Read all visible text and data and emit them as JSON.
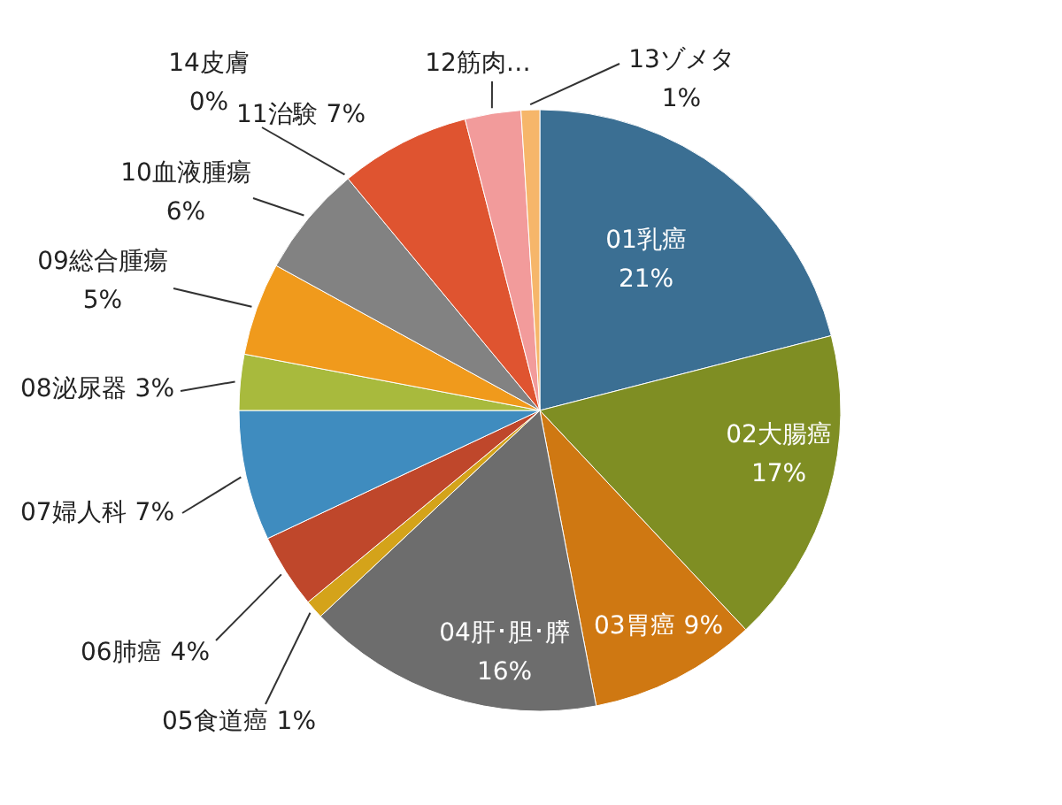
{
  "chart_data": {
    "type": "pie",
    "categories": [
      "01乳癌",
      "02大腸癌",
      "03胃癌",
      "04肝･胆･膵",
      "05食道癌",
      "06肺癌",
      "07婦人科",
      "08泌尿器",
      "09総合腫瘍",
      "10血液腫瘍",
      "14皮膚",
      "11治験",
      "12筋肉…",
      "13ゾメタ"
    ],
    "values": [
      21,
      17,
      9,
      16,
      1,
      4,
      7,
      3,
      5,
      6,
      0,
      7,
      3,
      1
    ],
    "value_labels": [
      "21%",
      "17%",
      "9%",
      "16%",
      "1%",
      "4%",
      "7%",
      "3%",
      "5%",
      "6%",
      "0%",
      "7%",
      null,
      "1%"
    ],
    "colors": [
      "#3b6f93",
      "#7f8e23",
      "#cf7812",
      "#6d6d6d",
      "#d4a31a",
      "#bf472b",
      "#3f8cbf",
      "#a8ba3d",
      "#f09a1c",
      "#828282",
      null,
      "#df5430",
      "#f29b9b",
      "#f6b66a"
    ]
  }
}
